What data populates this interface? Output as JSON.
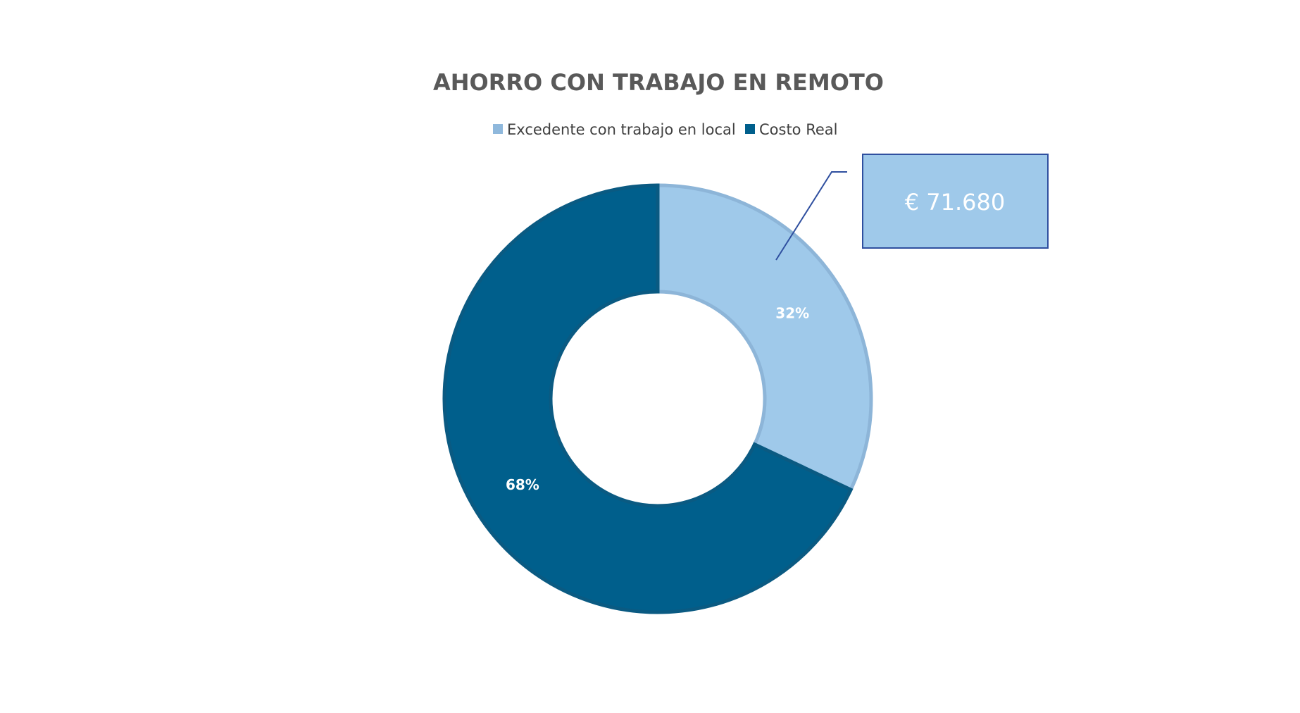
{
  "chart_data": {
    "type": "pie",
    "variant": "doughnut",
    "title": "AHORRO CON TRABAJO EN REMOTO",
    "legend_position": "top",
    "slices": [
      {
        "label": "Excedente con trabajo en local",
        "value": 32,
        "display": "32%",
        "color": "#9FC9EA",
        "border": "#8DB5D8"
      },
      {
        "label": "Costo Real",
        "value": 68,
        "display": "68%",
        "color": "#005F8C",
        "border": "#0A5A82"
      }
    ],
    "callout": {
      "text": "€ 71.680",
      "fill": "#9FC9EA",
      "border": "#2F4F9F"
    }
  }
}
